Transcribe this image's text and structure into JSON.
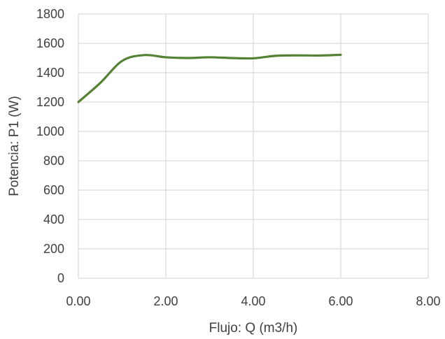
{
  "chart_data": {
    "type": "line",
    "title": "",
    "xlabel": "Flujo: Q (m3/h)",
    "ylabel": "Potencia: P1 (W)",
    "xlim": [
      0,
      8
    ],
    "ylim": [
      0,
      1800
    ],
    "x_ticks": [
      "0.00",
      "2.00",
      "4.00",
      "6.00",
      "8.00"
    ],
    "y_ticks": [
      "0",
      "200",
      "400",
      "600",
      "800",
      "1000",
      "1200",
      "1400",
      "1600",
      "1800"
    ],
    "grid": true,
    "legend": "none",
    "series": [
      {
        "color": "#548235",
        "x": [
          0.0,
          0.5,
          1.0,
          1.5,
          2.0,
          2.5,
          3.0,
          3.5,
          4.0,
          4.5,
          5.0,
          5.5,
          6.0
        ],
        "y": [
          1200,
          1330,
          1480,
          1520,
          1505,
          1500,
          1505,
          1500,
          1498,
          1515,
          1518,
          1517,
          1522
        ]
      }
    ]
  }
}
